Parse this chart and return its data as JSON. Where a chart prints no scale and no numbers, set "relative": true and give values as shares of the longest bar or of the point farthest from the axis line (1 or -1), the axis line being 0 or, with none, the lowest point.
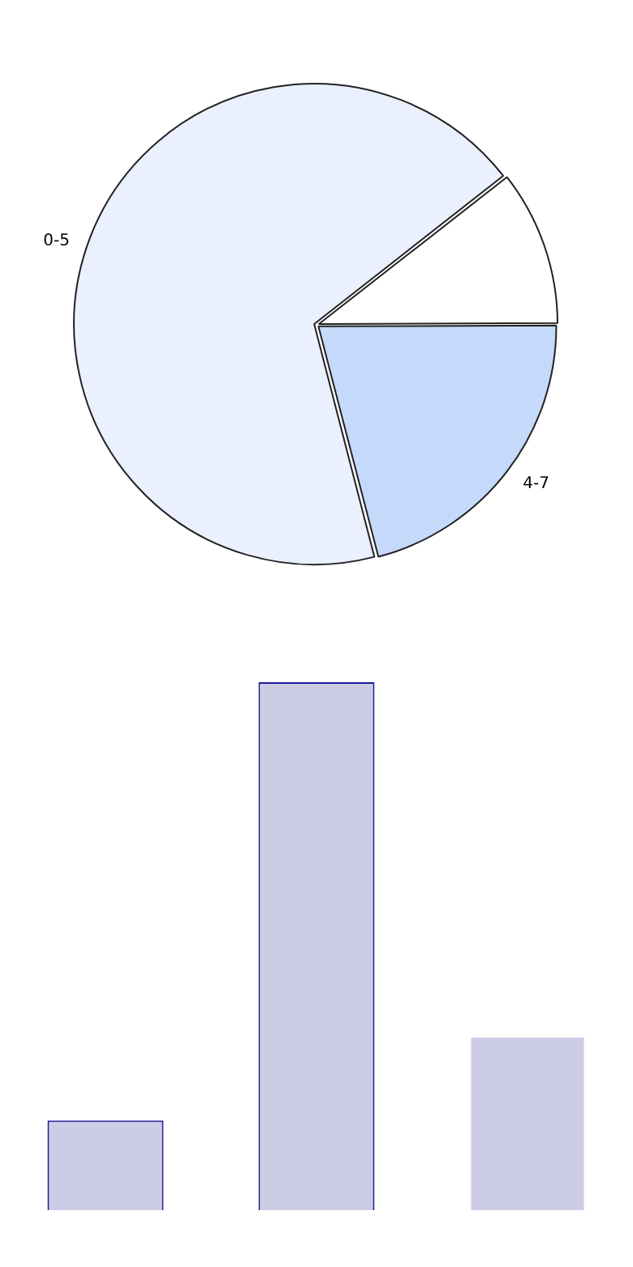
{
  "chart_data": [
    {
      "type": "pie",
      "categories": [
        null,
        "4-7",
        "0-5"
      ],
      "values": [
        10.5,
        21,
        68.5
      ],
      "colors": [
        "#ffffff",
        "#c5d9fb",
        "#eaf0fd"
      ]
    },
    {
      "type": "bar",
      "relative": true,
      "categories": [
        null,
        null,
        null
      ],
      "values": [
        0.17,
        1,
        0.33
      ],
      "colors": [
        "#cccce5",
        "#cccce5",
        "#cccce5"
      ]
    }
  ]
}
